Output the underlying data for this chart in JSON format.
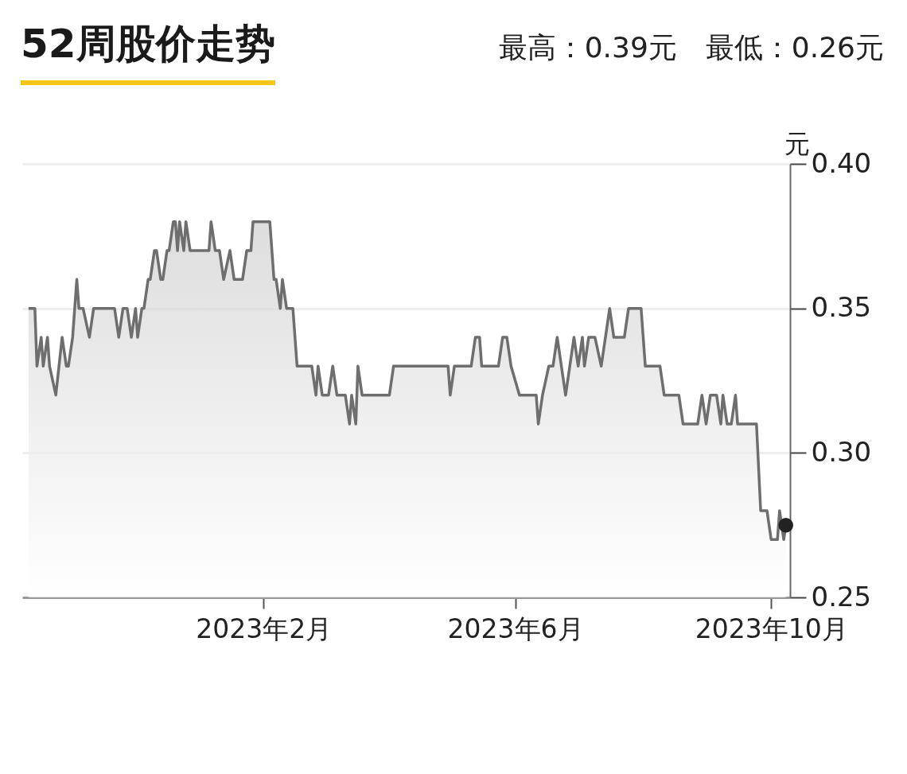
{
  "chart_data": {
    "type": "area",
    "title": "52周股价走势",
    "subtitle": "最高：0.39元　最低：0.26元",
    "ylabel": "元",
    "xlim": [
      "2022-10-09",
      "2023-10-10"
    ],
    "xticks": [
      {
        "value": "2023-02-01",
        "label": "2023年2月"
      },
      {
        "value": "2023-06-01",
        "label": "2023年6月"
      },
      {
        "value": "2023-10-01",
        "label": "2023年10月"
      }
    ],
    "ylim": [
      0.25,
      0.4
    ],
    "yticks": [
      {
        "value": 0.25,
        "label": "0.25"
      },
      {
        "value": 0.3,
        "label": "0.30"
      },
      {
        "value": 0.35,
        "label": "0.35"
      },
      {
        "value": 0.4,
        "label": "0.40"
      }
    ],
    "grid": "y",
    "legend": false,
    "series": [
      {
        "color": "#6e6e6e",
        "x": [
          "2022-10-12",
          "2022-10-15",
          "2022-10-16",
          "2022-10-18",
          "2022-10-19",
          "2022-10-21",
          "2022-10-22",
          "2022-10-25",
          "2022-10-28",
          "2022-10-30",
          "2022-10-31",
          "2022-11-02",
          "2022-11-04",
          "2022-11-05",
          "2022-11-07",
          "2022-11-10",
          "2022-11-12",
          "2022-11-22",
          "2022-11-24",
          "2022-11-26",
          "2022-11-28",
          "2022-11-30",
          "2022-12-02",
          "2022-12-03",
          "2022-12-05",
          "2022-12-06",
          "2022-12-08",
          "2022-12-09",
          "2022-12-11",
          "2022-12-12",
          "2022-12-14",
          "2022-12-15",
          "2022-12-17",
          "2022-12-18",
          "2022-12-20",
          "2022-12-21",
          "2022-12-22",
          "2022-12-23",
          "2022-12-25",
          "2022-12-26",
          "2022-12-28",
          "2023-01-06",
          "2023-01-07",
          "2023-01-09",
          "2023-01-11",
          "2023-01-13",
          "2023-01-16",
          "2023-01-18",
          "2023-01-22",
          "2023-01-24",
          "2023-01-26",
          "2023-01-27",
          "2023-02-04",
          "2023-02-06",
          "2023-02-07",
          "2023-02-09",
          "2023-02-10",
          "2023-02-12",
          "2023-02-15",
          "2023-02-17",
          "2023-02-24",
          "2023-02-26",
          "2023-02-27",
          "2023-03-01",
          "2023-03-04",
          "2023-03-06",
          "2023-03-08",
          "2023-03-12",
          "2023-03-14",
          "2023-03-15",
          "2023-03-17",
          "2023-03-18",
          "2023-03-20",
          "2023-04-02",
          "2023-04-04",
          "2023-04-30",
          "2023-05-01",
          "2023-05-03",
          "2023-05-11",
          "2023-05-13",
          "2023-05-15",
          "2023-05-16",
          "2023-05-24",
          "2023-05-26",
          "2023-05-28",
          "2023-05-30",
          "2023-06-03",
          "2023-06-11",
          "2023-06-12",
          "2023-06-14",
          "2023-06-17",
          "2023-06-19",
          "2023-06-21",
          "2023-06-25",
          "2023-06-29",
          "2023-07-01",
          "2023-07-03",
          "2023-07-04",
          "2023-07-06",
          "2023-07-09",
          "2023-07-12",
          "2023-07-16",
          "2023-07-18",
          "2023-07-23",
          "2023-07-25",
          "2023-07-31",
          "2023-08-02",
          "2023-08-09",
          "2023-08-11",
          "2023-08-18",
          "2023-08-20",
          "2023-08-27",
          "2023-08-29",
          "2023-08-31",
          "2023-09-02",
          "2023-09-05",
          "2023-09-07",
          "2023-09-08",
          "2023-09-10",
          "2023-09-12",
          "2023-09-14",
          "2023-09-15",
          "2023-09-24",
          "2023-09-26",
          "2023-09-29",
          "2023-10-01",
          "2023-10-04",
          "2023-10-05",
          "2023-10-07",
          "2023-10-08"
        ],
        "values": [
          0.35,
          0.35,
          0.33,
          0.34,
          0.33,
          0.34,
          0.33,
          0.32,
          0.34,
          0.33,
          0.33,
          0.34,
          0.36,
          0.35,
          0.35,
          0.34,
          0.35,
          0.35,
          0.34,
          0.35,
          0.35,
          0.34,
          0.35,
          0.34,
          0.35,
          0.35,
          0.36,
          0.36,
          0.37,
          0.37,
          0.36,
          0.36,
          0.37,
          0.37,
          0.38,
          0.38,
          0.37,
          0.38,
          0.37,
          0.38,
          0.37,
          0.37,
          0.38,
          0.37,
          0.37,
          0.36,
          0.37,
          0.36,
          0.36,
          0.37,
          0.37,
          0.38,
          0.38,
          0.36,
          0.36,
          0.35,
          0.36,
          0.35,
          0.35,
          0.33,
          0.33,
          0.32,
          0.33,
          0.32,
          0.32,
          0.33,
          0.32,
          0.32,
          0.31,
          0.32,
          0.31,
          0.33,
          0.32,
          0.32,
          0.33,
          0.33,
          0.32,
          0.33,
          0.33,
          0.34,
          0.34,
          0.33,
          0.33,
          0.34,
          0.34,
          0.33,
          0.32,
          0.32,
          0.31,
          0.32,
          0.33,
          0.33,
          0.34,
          0.32,
          0.34,
          0.33,
          0.34,
          0.33,
          0.34,
          0.34,
          0.33,
          0.35,
          0.34,
          0.34,
          0.35,
          0.35,
          0.33,
          0.33,
          0.32,
          0.32,
          0.31,
          0.31,
          0.32,
          0.31,
          0.32,
          0.32,
          0.31,
          0.32,
          0.31,
          0.31,
          0.32,
          0.31,
          0.31,
          0.28,
          0.28,
          0.27,
          0.27,
          0.28,
          0.27,
          0.275
        ]
      },
      {
        "type": "scatter",
        "color": "#222222",
        "marker": "circle",
        "x": [
          "2023-10-08"
        ],
        "values": [
          0.275
        ]
      }
    ]
  }
}
